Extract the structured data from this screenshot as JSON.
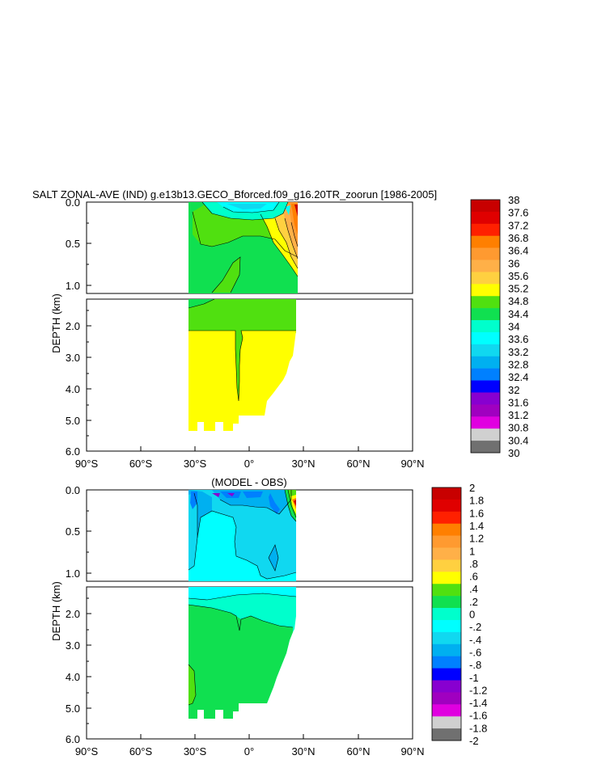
{
  "chart_data": [
    {
      "type": "heatmap",
      "title": "SALT ZONAL-AVE (IND) g.e13b13.GECO_Bforced.f09_g16.20TR_zoorun [1986-2005]",
      "ylabel": "DEPTH (km)",
      "x_ticks": [
        "90°S",
        "60°S",
        "30°S",
        "0°",
        "30°N",
        "60°N",
        "90°N"
      ],
      "xlim": [
        -90,
        90
      ],
      "upper_y_ticks": [
        "0.0",
        "0.5",
        "1.0"
      ],
      "lower_y_ticks": [
        "2.0",
        "3.0",
        "4.0",
        "5.0",
        "6.0"
      ],
      "ylim_upper_km": [
        0,
        1.1
      ],
      "ylim_lower_km": [
        1.1,
        6.0
      ],
      "data_lat_range": [
        -34,
        25
      ],
      "colorbar_levels": [
        "38",
        "37.6",
        "37.2",
        "36.8",
        "36.4",
        "36",
        "35.6",
        "35.2",
        "34.8",
        "34.4",
        "34",
        "33.6",
        "33.2",
        "32.8",
        "32.4",
        "32",
        "31.6",
        "31.2",
        "30.8",
        "30.4",
        "30"
      ],
      "colorbar_colors": [
        "#c80000",
        "#e00000",
        "#ff2000",
        "#ff7f00",
        "#ff9a30",
        "#ffb048",
        "#ffd040",
        "#ffff00",
        "#50e010",
        "#10e050",
        "#00ffcc",
        "#00ffff",
        "#10d8f0",
        "#00b0f0",
        "#0080ff",
        "#0000ff",
        "#8800d0",
        "#a000c0",
        "#e000e0",
        "#d0d0d0",
        "#707070"
      ]
    },
    {
      "type": "heatmap",
      "title": "(MODEL - OBS)",
      "ylabel": "DEPTH (km)",
      "x_ticks": [
        "90°S",
        "60°S",
        "30°S",
        "0°",
        "30°N",
        "60°N",
        "90°N"
      ],
      "xlim": [
        -90,
        90
      ],
      "upper_y_ticks": [
        "0.0",
        "0.5",
        "1.0"
      ],
      "lower_y_ticks": [
        "2.0",
        "3.0",
        "4.0",
        "5.0",
        "6.0"
      ],
      "ylim_upper_km": [
        0,
        1.1
      ],
      "ylim_lower_km": [
        1.1,
        6.0
      ],
      "data_lat_range": [
        -34,
        25
      ],
      "colorbar_levels": [
        "2",
        "1.8",
        "1.6",
        "1.4",
        "1.2",
        "1",
        ".8",
        ".6",
        ".4",
        ".2",
        "0",
        "-.2",
        "-.4",
        "-.6",
        "-.8",
        "-1",
        "-1.2",
        "-1.4",
        "-1.6",
        "-1.8",
        "-2"
      ],
      "colorbar_colors": [
        "#c80000",
        "#e00000",
        "#ff2000",
        "#ff7f00",
        "#ff9a30",
        "#ffb048",
        "#ffd040",
        "#ffff00",
        "#50e010",
        "#10e050",
        "#00ffcc",
        "#00ffff",
        "#10d8f0",
        "#00b0f0",
        "#0080ff",
        "#0000ff",
        "#8800d0",
        "#a000c0",
        "#e000e0",
        "#d0d0d0",
        "#707070"
      ]
    }
  ]
}
